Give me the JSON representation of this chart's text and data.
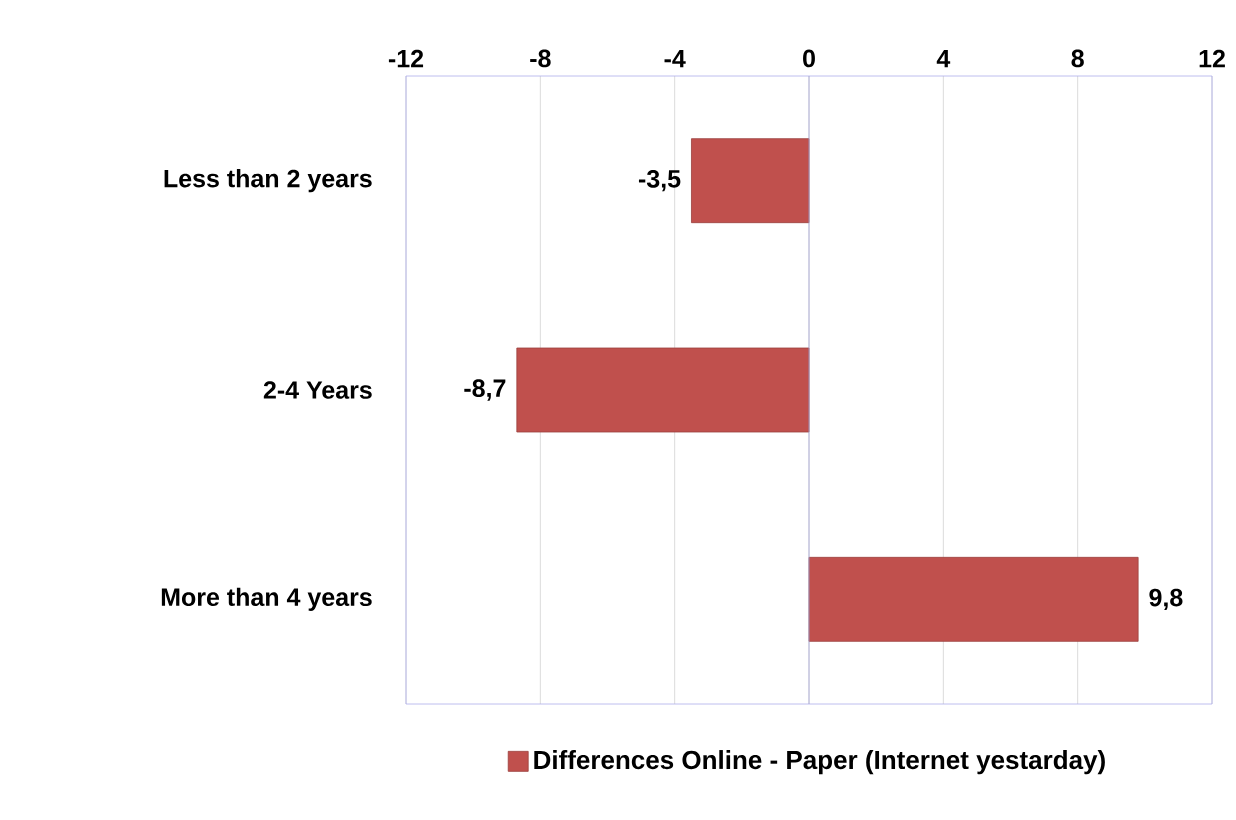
{
  "chart_data": {
    "type": "bar",
    "orientation": "horizontal",
    "categories": [
      "Less than 2 years",
      "2-4 Years",
      "More than 4 years"
    ],
    "series": [
      {
        "name": "Differences Online - Paper (Internet yestarday)",
        "color": "#c0504d",
        "values": [
          -3.5,
          -8.7,
          9.8
        ],
        "value_labels": [
          "-3,5",
          "-8,7",
          "9,8"
        ]
      }
    ],
    "xlim": [
      -12,
      12
    ],
    "xticks": [
      -12,
      -8,
      -4,
      0,
      4,
      8,
      12
    ],
    "grid": "x",
    "legend": "bottom",
    "ref_lines": [
      {
        "axis": "x",
        "value": 0,
        "color": "#a6a6d8"
      }
    ]
  }
}
